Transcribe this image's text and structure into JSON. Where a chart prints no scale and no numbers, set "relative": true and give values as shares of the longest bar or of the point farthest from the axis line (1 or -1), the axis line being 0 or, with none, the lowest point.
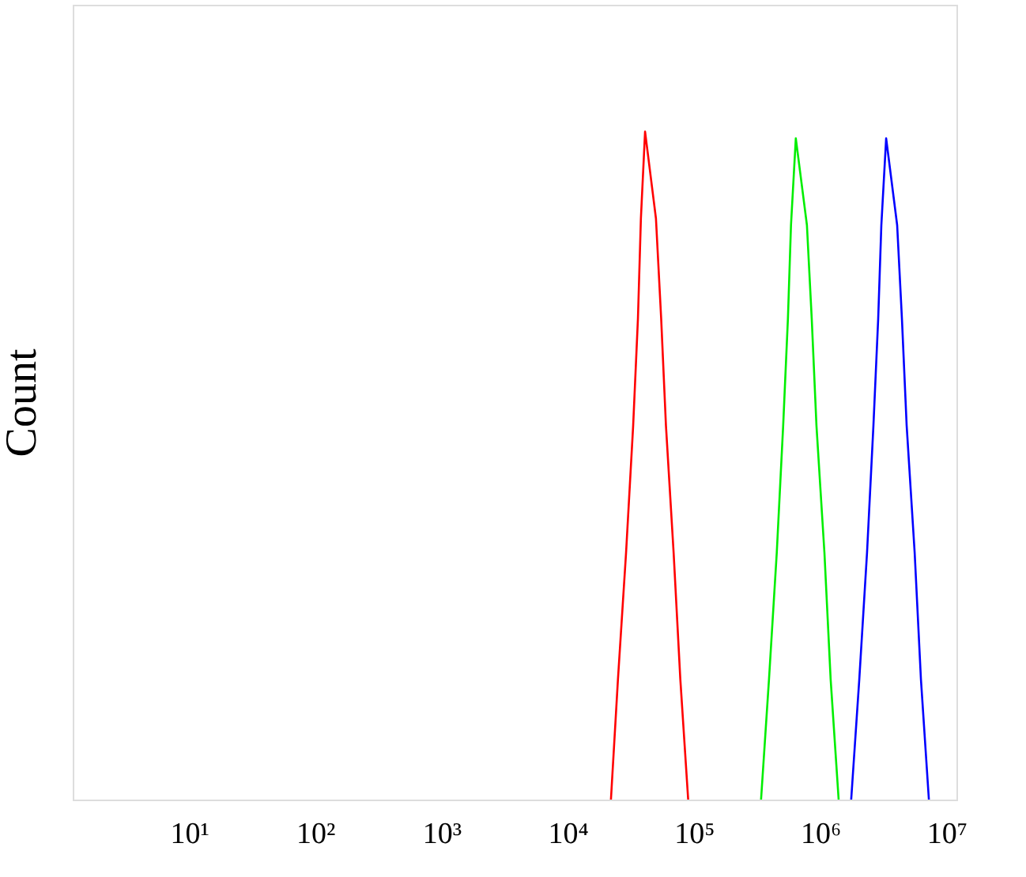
{
  "chart_data": {
    "type": "line",
    "ylabel": "Count",
    "relative": true,
    "log": "x",
    "grid": false,
    "legend": false,
    "tick_labels": "x",
    "xlim": [
      1.2,
      12000000
    ],
    "xticks": [
      {
        "value": 10,
        "label": "10¹"
      },
      {
        "value": 100,
        "label": "10²"
      },
      {
        "value": 1000,
        "label": "10³"
      },
      {
        "value": 10000,
        "label": "10⁴"
      },
      {
        "value": 100000,
        "label": "10⁵"
      },
      {
        "value": 1000000,
        "label": "10⁶"
      },
      {
        "value": 10000000,
        "label": "10⁷"
      }
    ],
    "series": [
      {
        "color": "#ff0000",
        "x": [
          22000,
          25000,
          29000,
          33000,
          36000,
          38000,
          41000,
          50000,
          55000,
          60000,
          69000,
          78000,
          90000
        ],
        "values": [
          0,
          0.18,
          0.37,
          0.56,
          0.72,
          0.87,
          1,
          0.87,
          0.72,
          0.56,
          0.37,
          0.18,
          0
        ]
      },
      {
        "color": "#00ee00",
        "x": [
          340000,
          393000,
          453000,
          509000,
          555000,
          587000,
          641000,
          785000,
          857000,
          934000,
          1080000,
          1210000,
          1400000
        ],
        "values": [
          0,
          0.18,
          0.37,
          0.56,
          0.72,
          0.86,
          0.99,
          0.86,
          0.72,
          0.56,
          0.37,
          0.18,
          0
        ]
      },
      {
        "color": "#0000ff",
        "x": [
          1760000,
          2040000,
          2350000,
          2640000,
          2880000,
          3050000,
          3330000,
          4070000,
          4440000,
          4840000,
          5600000,
          6280000,
          7260000
        ],
        "values": [
          0,
          0.18,
          0.37,
          0.56,
          0.72,
          0.86,
          0.99,
          0.86,
          0.72,
          0.56,
          0.37,
          0.18,
          0
        ]
      }
    ]
  }
}
